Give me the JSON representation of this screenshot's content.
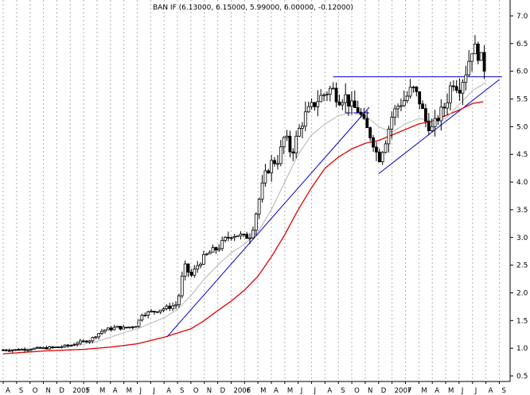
{
  "chart_data": {
    "type": "candlestick",
    "title": "BAN IF (6.13000, 6.15000, 5.99000, 6.00000, -0.12000)",
    "ylim": [
      0.5,
      7.0
    ],
    "y_ticks": [
      0.5,
      1.0,
      1.5,
      2.0,
      2.5,
      3.0,
      3.5,
      4.0,
      4.5,
      5.0,
      5.5,
      6.0,
      6.5,
      7.0
    ],
    "y_tick_labels": [
      "0.5",
      "1.0",
      "1.5",
      "2.0",
      "2.5",
      "3.0",
      "3.5",
      "4.0",
      "4.5",
      "5.0",
      "5.5",
      "6.0",
      "6.5",
      "7.0"
    ],
    "x_range_months": [
      0,
      37.5
    ],
    "x_labels": [
      "A",
      "S",
      "O",
      "N",
      "D",
      "2005",
      "F",
      "M",
      "A",
      "M",
      "J",
      "J",
      "A",
      "S",
      "O",
      "N",
      "D",
      "2006",
      "F",
      "M",
      "A",
      "M",
      "J",
      "J",
      "A",
      "S",
      "O",
      "N",
      "D",
      "2007",
      "F",
      "M",
      "A",
      "M",
      "J",
      "J",
      "A",
      "S"
    ],
    "grid": true,
    "colors": {
      "price": "#000000",
      "ma_short": "#b4b4b4",
      "ma_long": "#e00000",
      "trendlines": "#0000cc",
      "grid": "#b0b0b0",
      "background": "#ffffff"
    },
    "price_path": [
      [
        0,
        0.97
      ],
      [
        1,
        0.97
      ],
      [
        2,
        0.99
      ],
      [
        3,
        1.0
      ],
      [
        4,
        1.02
      ],
      [
        5,
        1.05
      ],
      [
        5.5,
        1.1
      ],
      [
        6,
        1.12
      ],
      [
        6.5,
        1.15
      ],
      [
        7,
        1.25
      ],
      [
        7.5,
        1.33
      ],
      [
        8,
        1.35
      ],
      [
        8.5,
        1.38
      ],
      [
        9,
        1.36
      ],
      [
        10,
        1.42
      ],
      [
        10.3,
        1.62
      ],
      [
        11,
        1.65
      ],
      [
        12,
        1.72
      ],
      [
        12.5,
        1.75
      ],
      [
        13,
        1.8
      ],
      [
        13.5,
        2.5
      ],
      [
        14,
        2.3
      ],
      [
        14.5,
        2.5
      ],
      [
        15,
        2.65
      ],
      [
        15.5,
        2.75
      ],
      [
        16,
        2.8
      ],
      [
        16.5,
        2.95
      ],
      [
        17,
        3.05
      ],
      [
        17.5,
        3.05
      ],
      [
        18,
        3.0
      ],
      [
        18.5,
        3.05
      ],
      [
        19,
        3.6
      ],
      [
        19.5,
        4.1
      ],
      [
        20,
        4.35
      ],
      [
        20.5,
        4.4
      ],
      [
        21,
        4.85
      ],
      [
        21.5,
        4.5
      ],
      [
        22,
        4.9
      ],
      [
        22.5,
        5.2
      ],
      [
        23,
        5.35
      ],
      [
        23.5,
        5.5
      ],
      [
        24,
        5.6
      ],
      [
        24.5,
        5.7
      ],
      [
        25,
        5.5
      ],
      [
        25.5,
        5.55
      ],
      [
        26,
        5.35
      ],
      [
        26.5,
        5.3
      ],
      [
        27,
        5.0
      ],
      [
        27.5,
        4.8
      ],
      [
        28,
        4.4
      ],
      [
        28.5,
        4.75
      ],
      [
        29,
        5.2
      ],
      [
        29.5,
        5.4
      ],
      [
        30,
        5.5
      ],
      [
        30.5,
        5.7
      ],
      [
        31,
        5.5
      ],
      [
        31.5,
        5.1
      ],
      [
        32,
        4.95
      ],
      [
        32.5,
        5.2
      ],
      [
        33,
        5.4
      ],
      [
        33.5,
        5.85
      ],
      [
        34,
        5.7
      ],
      [
        34.5,
        6.0
      ],
      [
        35,
        6.45
      ],
      [
        35.5,
        6.3
      ],
      [
        36,
        6.0
      ]
    ],
    "ma_short": [
      [
        0,
        0.97
      ],
      [
        3,
        1.0
      ],
      [
        5,
        1.03
      ],
      [
        6,
        1.07
      ],
      [
        7,
        1.12
      ],
      [
        8,
        1.2
      ],
      [
        9,
        1.28
      ],
      [
        10,
        1.35
      ],
      [
        11,
        1.45
      ],
      [
        12,
        1.55
      ],
      [
        13,
        1.7
      ],
      [
        14,
        1.95
      ],
      [
        15,
        2.25
      ],
      [
        16,
        2.5
      ],
      [
        17,
        2.72
      ],
      [
        18,
        2.88
      ],
      [
        19,
        3.1
      ],
      [
        20,
        3.5
      ],
      [
        21,
        4.0
      ],
      [
        22,
        4.5
      ],
      [
        23,
        4.85
      ],
      [
        24,
        5.05
      ],
      [
        25,
        5.2
      ],
      [
        26,
        5.25
      ],
      [
        27,
        5.2
      ],
      [
        28,
        5.0
      ],
      [
        29,
        4.9
      ],
      [
        30,
        5.05
      ],
      [
        31,
        5.15
      ],
      [
        32,
        5.1
      ],
      [
        33,
        5.15
      ],
      [
        34,
        5.4
      ],
      [
        35,
        5.65
      ],
      [
        36,
        5.8
      ]
    ],
    "ma_long": [
      [
        0,
        0.9
      ],
      [
        3,
        0.95
      ],
      [
        6,
        0.98
      ],
      [
        8,
        1.02
      ],
      [
        10,
        1.08
      ],
      [
        12,
        1.2
      ],
      [
        14,
        1.35
      ],
      [
        15,
        1.5
      ],
      [
        16,
        1.68
      ],
      [
        17,
        1.85
      ],
      [
        18,
        2.05
      ],
      [
        19,
        2.3
      ],
      [
        20,
        2.65
      ],
      [
        21,
        3.05
      ],
      [
        22,
        3.5
      ],
      [
        23,
        3.9
      ],
      [
        24,
        4.25
      ],
      [
        25,
        4.45
      ],
      [
        26,
        4.6
      ],
      [
        27,
        4.7
      ],
      [
        28,
        4.75
      ],
      [
        29,
        4.85
      ],
      [
        30,
        4.95
      ],
      [
        31,
        5.05
      ],
      [
        32,
        5.1
      ],
      [
        33,
        5.2
      ],
      [
        34,
        5.3
      ],
      [
        35,
        5.42
      ],
      [
        35.8,
        5.45
      ]
    ],
    "trendlines": [
      {
        "name": "",
        "points": [
          [
            12.2,
            1.2
          ],
          [
            27.3,
            5.35
          ]
        ]
      },
      {
        "name": "",
        "points": [
          [
            24.6,
            5.9
          ],
          [
            37.2,
            5.9
          ]
        ]
      },
      {
        "name": "",
        "points": [
          [
            25.5,
            5.25
          ],
          [
            27.3,
            5.25
          ]
        ]
      },
      {
        "name": "",
        "points": [
          [
            28.0,
            4.15
          ],
          [
            37.0,
            5.85
          ]
        ]
      }
    ]
  }
}
